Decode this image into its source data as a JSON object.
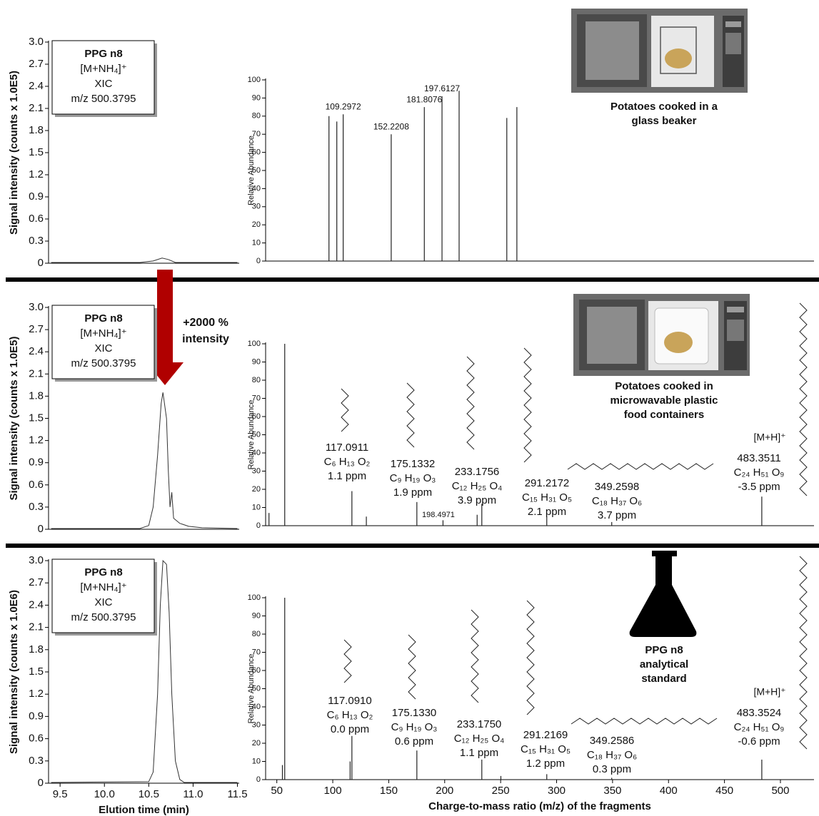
{
  "chart_data": [
    {
      "type": "line",
      "ylabel": "Signal intensity (counts x 1.0E5)",
      "annotation": [
        "PPG n8",
        "[M+NH₄]⁺",
        "XIC",
        "m/z 500.3795"
      ],
      "xlim": [
        9.37,
        11.52
      ],
      "ylim": [
        0,
        3
      ],
      "yticks": [
        0,
        0.3,
        0.6,
        0.9,
        1.2,
        1.5,
        1.8,
        2.1,
        2.4,
        2.7,
        {
          "value": 3,
          "label": "3.0"
        }
      ],
      "x": [
        9.4,
        10.4,
        10.55,
        10.65,
        10.72,
        10.8,
        11.5
      ],
      "values": [
        0.01,
        0.01,
        0.03,
        0.07,
        0.05,
        0.01,
        0.01
      ],
      "color": "#333333"
    },
    {
      "type": "stem",
      "ylabel": "Relative Abundance",
      "caption": [
        "Potatoes cooked in a",
        "glass beaker"
      ],
      "xlim": [
        40,
        530
      ],
      "ylim": [
        0,
        100
      ],
      "yticks": [
        0,
        10,
        20,
        30,
        40,
        50,
        60,
        70,
        80,
        90,
        100
      ],
      "x": [
        96.6,
        103.6,
        109.2972,
        152.2208,
        181.8076,
        197.6127,
        212.9,
        255.5,
        264.5
      ],
      "values": [
        80,
        77,
        81,
        70,
        85,
        91,
        94,
        79,
        85
      ],
      "x_labels": [
        null,
        null,
        "109.2972",
        "152.2208",
        "181.8076",
        "197.6127",
        null,
        null,
        null
      ],
      "color": "#222222"
    },
    {
      "type": "line",
      "ylabel": "Signal intensity (counts x 1.0E5)",
      "annotation": [
        "PPG n8",
        "[M+NH₄]⁺",
        "XIC",
        "m/z 500.3795"
      ],
      "arrow_label": [
        "+2000 %",
        "intensity"
      ],
      "xlim": [
        9.37,
        11.52
      ],
      "ylim": [
        0,
        3
      ],
      "yticks": [
        0,
        0.3,
        0.6,
        0.9,
        1.2,
        1.5,
        1.8,
        2.1,
        2.4,
        2.7,
        {
          "value": 3,
          "label": "3.0"
        }
      ],
      "x": [
        9.4,
        10.4,
        10.5,
        10.55,
        10.6,
        10.64,
        10.66,
        10.7,
        10.72,
        10.74,
        10.76,
        10.78,
        10.85,
        10.95,
        11.1,
        11.5
      ],
      "values": [
        0.01,
        0.01,
        0.05,
        0.3,
        1.0,
        1.7,
        1.85,
        1.5,
        0.8,
        0.3,
        0.5,
        0.15,
        0.08,
        0.04,
        0.02,
        0.01
      ],
      "color": "#333333"
    },
    {
      "type": "stem",
      "ylabel": "Relative Abundance",
      "caption": [
        "Potatoes cooked in",
        "microwavable plastic",
        "food containers"
      ],
      "precursor_label": "[M+H]⁺",
      "xlim": [
        40,
        530
      ],
      "ylim": [
        0,
        100
      ],
      "yticks": [
        0,
        10,
        20,
        30,
        40,
        50,
        60,
        70,
        80,
        90,
        100
      ],
      "x": [
        43,
        57.07,
        117.0911,
        130,
        175.1332,
        198.4971,
        229,
        233.1756,
        291.2172,
        349.2598,
        483.3511
      ],
      "values": [
        7,
        100,
        19,
        5,
        13,
        3,
        6,
        12,
        5,
        2,
        16
      ],
      "x_labels": [
        null,
        null,
        "117.0911",
        null,
        "175.1332",
        "198.4971",
        null,
        "233.1756",
        "291.2172",
        "349.2598",
        "483.3511"
      ],
      "formulas": [
        null,
        null,
        "C₆ H₁₃ O₂",
        null,
        "C₉ H₁₉ O₃",
        null,
        null,
        "C₁₂ H₂₅ O₄",
        "C₁₅ H₃₁ O₅",
        "C₁₈ H₃₇ O₆",
        "C₂₄ H₅₁ O₉"
      ],
      "ppm_labels": [
        null,
        null,
        "1.1 ppm",
        null,
        "1.9 ppm",
        null,
        null,
        "3.9 ppm",
        "2.1 ppm",
        "3.7 ppm",
        "-3.5 ppm"
      ],
      "color": "#222222"
    },
    {
      "type": "line",
      "ylabel": "Signal intensity (counts x 1.0E6)",
      "xlabel": "Elution time (min)",
      "annotation": [
        "PPG n8",
        "[M+NH₄]⁺",
        "XIC",
        "m/z 500.3795"
      ],
      "xlim": [
        9.37,
        11.52
      ],
      "ylim": [
        0,
        3
      ],
      "xticks": [
        9.5,
        {
          "value": 10,
          "label": "10.0"
        },
        10.5,
        {
          "value": 11,
          "label": "11.0"
        },
        11.5
      ],
      "yticks": [
        0,
        0.3,
        0.6,
        0.9,
        1.2,
        1.5,
        1.8,
        2.1,
        2.4,
        2.7,
        {
          "value": 3,
          "label": "3.0"
        }
      ],
      "x": [
        9.4,
        10.5,
        10.55,
        10.6,
        10.63,
        10.66,
        10.7,
        10.73,
        10.76,
        10.8,
        10.85,
        10.9,
        11.5
      ],
      "values": [
        0.01,
        0.02,
        0.15,
        1.2,
        2.4,
        3.0,
        2.95,
        2.3,
        1.2,
        0.3,
        0.05,
        0.01,
        0.01
      ],
      "color": "#333333"
    },
    {
      "type": "stem",
      "ylabel": "Relative Abundance",
      "xlabel": "Charge-to-mass ratio (m/z) of the fragments",
      "caption": [
        "PPG n8",
        "analytical",
        "standard"
      ],
      "precursor_label": "[M+H]⁺",
      "xlim": [
        40,
        530
      ],
      "ylim": [
        0,
        100
      ],
      "xticks": [
        50,
        100,
        150,
        200,
        250,
        300,
        350,
        400,
        450,
        500
      ],
      "yticks": [
        0,
        10,
        20,
        30,
        40,
        50,
        60,
        70,
        80,
        90,
        100
      ],
      "x": [
        55,
        57.07,
        115.5,
        117.091,
        175.133,
        233.175,
        250.2,
        291.2169,
        349.2586,
        483.3524
      ],
      "values": [
        8,
        100,
        10,
        24,
        16,
        11,
        2,
        3,
        1,
        11
      ],
      "x_labels": [
        null,
        null,
        null,
        "117.0910",
        "175.1330",
        "233.1750",
        null,
        "291.2169",
        "349.2586",
        "483.3524"
      ],
      "formulas": [
        null,
        null,
        null,
        "C₆ H₁₃ O₂",
        "C₉ H₁₉ O₃",
        "C₁₂ H₂₅ O₄",
        null,
        "C₁₅ H₃₁ O₅",
        "C₁₈ H₃₇ O₆",
        "C₂₄ H₅₁ O₉"
      ],
      "ppm_labels": [
        null,
        null,
        null,
        "0.0 ppm",
        "0.6 ppm",
        "1.1 ppm",
        null,
        "1.2 ppm",
        "0.3 ppm",
        "-0.6 ppm"
      ],
      "color": "#222222"
    }
  ]
}
